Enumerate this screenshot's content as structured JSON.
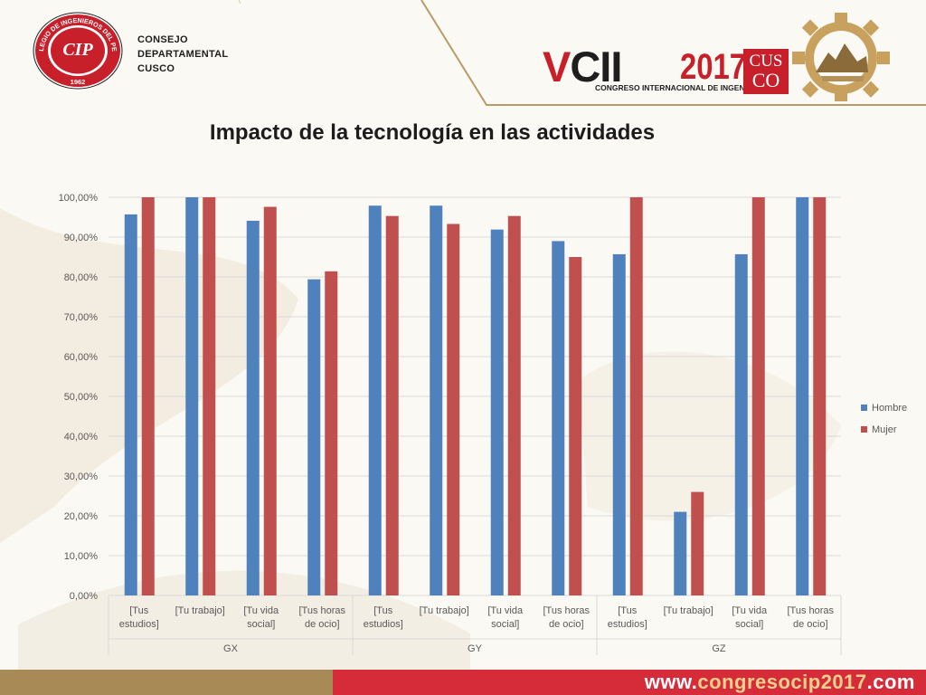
{
  "header": {
    "logo": {
      "ring_text": "COLEGIO DE INGENIEROS DEL PERU",
      "mark_text": "CIP",
      "year_text": "1962"
    },
    "org_name": [
      "CONSEJO",
      "DEPARTAMENTAL",
      "CUSCO"
    ],
    "brand": {
      "v": "V",
      "cii": "CII",
      "year": "2017",
      "subtitle": "CONGRESO INTERNACIONAL DE INGENIERÍA",
      "cusco_line1": "CUS",
      "cusco_line2": "CO"
    }
  },
  "title": "Impacto de la tecnología en las actividades",
  "chart_data": {
    "type": "bar",
    "title": "",
    "xlabel": "",
    "ylabel": "",
    "ylim": [
      0,
      100
    ],
    "y_ticks": [
      "0,00%",
      "10,00%",
      "20,00%",
      "30,00%",
      "40,00%",
      "50,00%",
      "60,00%",
      "70,00%",
      "80,00%",
      "90,00%",
      "100,00%"
    ],
    "grid": true,
    "legend_position": "right",
    "groups": [
      "GX",
      "GY",
      "GZ"
    ],
    "categories": [
      [
        "[Tus",
        "estudios]"
      ],
      [
        "[Tu trabajo]"
      ],
      [
        "[Tu vida",
        "social]"
      ],
      [
        "[Tus horas",
        "de ocio]"
      ],
      [
        "[Tus",
        "estudios]"
      ],
      [
        "[Tu trabajo]"
      ],
      [
        "[Tu vida",
        "social]"
      ],
      [
        "[Tus horas",
        "de ocio]"
      ],
      [
        "[Tus",
        "estudios]"
      ],
      [
        "[Tu trabajo]"
      ],
      [
        "[Tu vida",
        "social]"
      ],
      [
        "[Tus horas",
        "de ocio]"
      ]
    ],
    "series": [
      {
        "name": "Hombre",
        "color": "#4f81bd",
        "values": [
          95.7,
          100,
          94.1,
          79.4,
          97.9,
          97.9,
          91.9,
          89.0,
          85.7,
          21.0,
          85.7,
          100
        ]
      },
      {
        "name": "Mujer",
        "color": "#c0504d",
        "values": [
          100,
          100,
          97.6,
          81.4,
          95.3,
          93.3,
          95.3,
          85.0,
          100,
          26.0,
          100,
          100
        ]
      }
    ]
  },
  "footer": {
    "url_prefix": "www.",
    "url_domain": "congresocip2017",
    "url_suffix": ".com",
    "left_color": "#a88a57",
    "right_color": "#d62c3a"
  }
}
